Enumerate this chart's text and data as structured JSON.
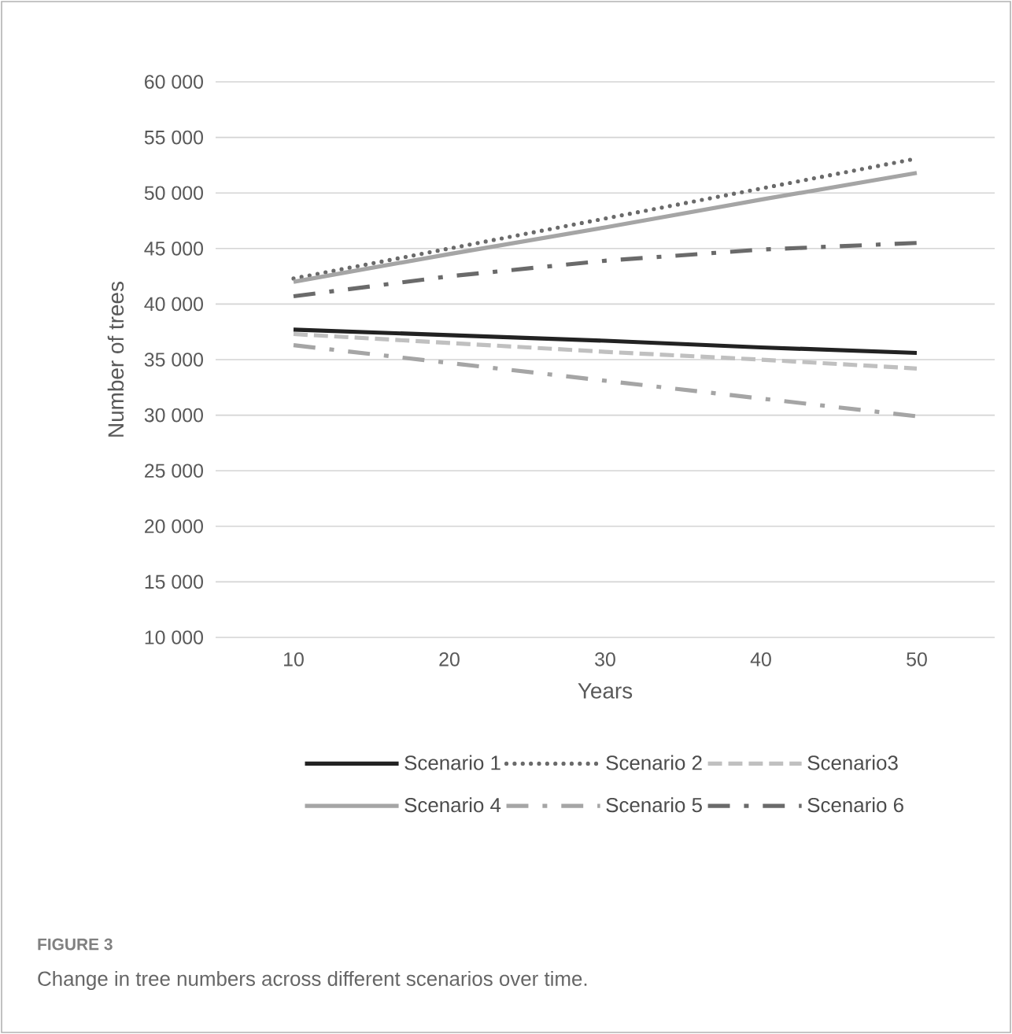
{
  "chart_data": {
    "type": "line",
    "xlabel": "Years",
    "ylabel": "Number of trees",
    "categories": [
      "10",
      "20",
      "30",
      "40",
      "50"
    ],
    "series": [
      {
        "name": "Scenario 1",
        "color": "#222222",
        "line_style": "solid",
        "values": [
          37700,
          37200,
          36700,
          36100,
          35600
        ]
      },
      {
        "name": "Scenario 2",
        "color": "#6a6a6a",
        "line_style": "dotted",
        "values": [
          42300,
          45000,
          47700,
          50400,
          53100
        ]
      },
      {
        "name": "Scenario3",
        "color": "#c0c0c0",
        "line_style": "dashed",
        "values": [
          37300,
          36500,
          35700,
          35000,
          34200
        ]
      },
      {
        "name": "Scenario 4",
        "color": "#a5a5a5",
        "line_style": "solid",
        "values": [
          42000,
          44500,
          46900,
          49400,
          51800
        ]
      },
      {
        "name": "Scenario 5",
        "color": "#a5a5a5",
        "line_style": "dashdot",
        "values": [
          36300,
          34700,
          33100,
          31500,
          29900
        ]
      },
      {
        "name": "Scenario 6",
        "color": "#6a6a6a",
        "line_style": "dashdot",
        "values": [
          40700,
          42500,
          43900,
          44900,
          45500
        ]
      }
    ],
    "ylim": [
      10000,
      60000
    ],
    "yticks": [
      {
        "value": 10000,
        "label": "10 000"
      },
      {
        "value": 15000,
        "label": "15 000"
      },
      {
        "value": 20000,
        "label": "20 000"
      },
      {
        "value": 25000,
        "label": "25 000"
      },
      {
        "value": 30000,
        "label": "30 000"
      },
      {
        "value": 35000,
        "label": "35 000"
      },
      {
        "value": 40000,
        "label": "40 000"
      },
      {
        "value": 45000,
        "label": "45 000"
      },
      {
        "value": 50000,
        "label": "50 000"
      },
      {
        "value": 55000,
        "label": "55 000"
      },
      {
        "value": 60000,
        "label": "60 000"
      }
    ],
    "grid": "y",
    "legend": "bottom",
    "marker": "none",
    "annotations": [
      "FIGURE 3",
      "Change in tree numbers across different scenarios over time."
    ]
  }
}
